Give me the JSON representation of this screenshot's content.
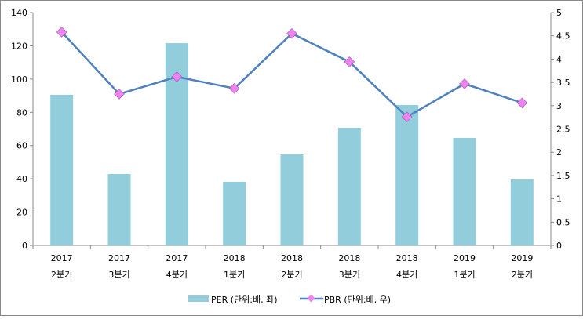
{
  "chart_data": {
    "type": "bar+line",
    "categories": [
      [
        "2017",
        "2분기"
      ],
      [
        "2017",
        "3분기"
      ],
      [
        "2017",
        "4분기"
      ],
      [
        "2018",
        "1분기"
      ],
      [
        "2018",
        "2분기"
      ],
      [
        "2018",
        "3분기"
      ],
      [
        "2018",
        "4분기"
      ],
      [
        "2019",
        "1분기"
      ],
      [
        "2019",
        "2분기"
      ]
    ],
    "series": [
      {
        "name": "PER (단위:배, 좌)",
        "type": "bar",
        "axis": "left",
        "color": "#92CDDC",
        "values": [
          90.5,
          42.9,
          121.6,
          38.2,
          54.7,
          70.7,
          84.4,
          64.6,
          39.6
        ]
      },
      {
        "name": "PBR (단위:배, 우)",
        "type": "line",
        "axis": "right",
        "color": "#4F81BD",
        "marker_color": "#EE82EE",
        "values": [
          4.58,
          3.25,
          3.62,
          3.37,
          4.55,
          3.94,
          2.76,
          3.47,
          3.06
        ]
      }
    ],
    "left_axis": {
      "min": 0,
      "max": 140,
      "step": 20,
      "ticks": [
        "0",
        "20",
        "40",
        "60",
        "80",
        "100",
        "120",
        "140"
      ]
    },
    "right_axis": {
      "min": 0,
      "max": 5,
      "step": 0.5,
      "ticks": [
        "0",
        "0.5",
        "1",
        "1.5",
        "2",
        "2.5",
        "3",
        "3.5",
        "4",
        "4.5",
        "5"
      ]
    },
    "legend_position": "bottom",
    "grid": false
  }
}
